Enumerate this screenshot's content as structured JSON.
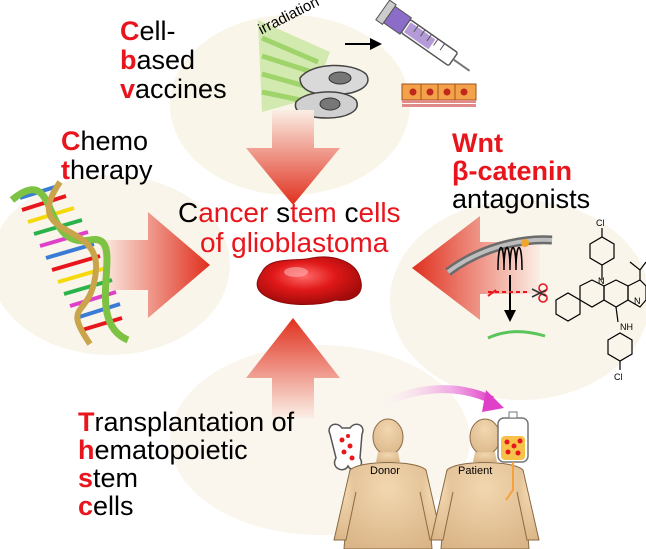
{
  "colors": {
    "accent_red": "#e8151d",
    "text": "#000000",
    "arrow_red": "#e23a22",
    "glow": "#f6efd9",
    "transfer_arrow": "#e040c8"
  },
  "center": {
    "line1": [
      {
        "text": "C",
        "red": false
      },
      {
        "text": "ancer ",
        "red": true
      },
      {
        "text": "s",
        "red": false
      },
      {
        "text": "tem ",
        "red": true
      },
      {
        "text": "c",
        "red": false
      },
      {
        "text": "ells",
        "red": true
      }
    ],
    "line2": "of  glioblastoma"
  },
  "vaccines": {
    "lines": [
      {
        "initial": "C",
        "rest": "ell-"
      },
      {
        "initial": "b",
        "rest": "ased"
      },
      {
        "initial": "v",
        "rest": "accines"
      }
    ],
    "irradiation": "irradiation"
  },
  "chemo": {
    "lines": [
      {
        "initial": "C",
        "rest": "hemo"
      },
      {
        "initial": "t",
        "rest": "herapy"
      }
    ]
  },
  "wnt": {
    "line1": "Wnt",
    "line2": "β-catenin",
    "line3": "antagonists"
  },
  "transplant": {
    "lines": [
      {
        "initial": "T",
        "rest": "ransplantation",
        "suffix": " of"
      },
      {
        "initial": "h",
        "rest": "ematopoietic",
        "suffix": ""
      },
      {
        "initial": "s",
        "rest": "tem",
        "suffix": ""
      },
      {
        "initial": "c",
        "rest": "ells",
        "suffix": ""
      }
    ],
    "donor": "Donor",
    "patient": "Patient"
  },
  "molecule": {
    "top_atom": "Cl",
    "bottom_atom": "Cl",
    "ring_n": "N",
    "imine_n": "N",
    "amine": "NH"
  },
  "icons": [
    "dna-helix-icon",
    "syringe-icon",
    "cells-icon",
    "tumor-blob-icon",
    "membrane-receptor-icon",
    "scissors-icon",
    "bone-icon",
    "iv-bag-icon",
    "donor-figure",
    "patient-figure",
    "transfer-arrow"
  ]
}
